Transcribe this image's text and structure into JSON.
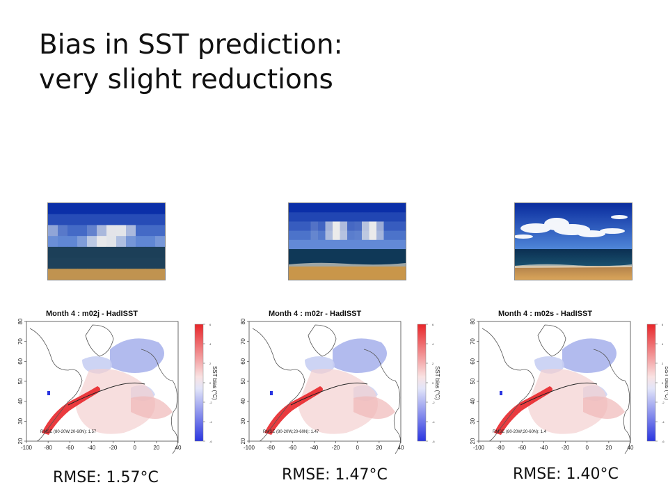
{
  "slide": {
    "title_line1": "Bias in SST prediction:",
    "title_line2": "very slight reductions"
  },
  "images": [
    {
      "name": "seascape-photo-heavily-pixelated"
    },
    {
      "name": "seascape-photo-partially-pixelated"
    },
    {
      "name": "seascape-photo-clear"
    }
  ],
  "panels": [
    {
      "title": "Month 4 : m02j - HadISST",
      "rmse_inset": "RMSE (80-20W;20-60N): 1.57",
      "caption": "RMSE: 1.57°C"
    },
    {
      "title": "Month 4 : m02r - HadISST",
      "rmse_inset": "RMSE (80-20W;20-60N): 1.47",
      "caption": "RMSE: 1.47°C"
    },
    {
      "title": "Month 4 : m02s - HadISST",
      "rmse_inset": "RMSE (80-20W;20-60N): 1.4",
      "caption": "RMSE: 1.40°C"
    }
  ],
  "map_axes": {
    "x_ticks": [
      "-100",
      "-80",
      "-60",
      "-40",
      "-20",
      "0",
      "20",
      "40"
    ],
    "y_ticks": [
      "20",
      "30",
      "40",
      "50",
      "60",
      "70",
      "80"
    ],
    "colorbar_label": "SST bias (°C)",
    "colorbar_ticks": [
      "6",
      "4",
      "2",
      "0",
      "-2",
      "-4",
      "-6"
    ]
  },
  "colors": {
    "warm_bias": "#e8262a",
    "cool_bias": "#2a35e0",
    "sky_top": "#0b2fa8",
    "sea": "#0d3a5c",
    "sand": "#c9964a"
  }
}
